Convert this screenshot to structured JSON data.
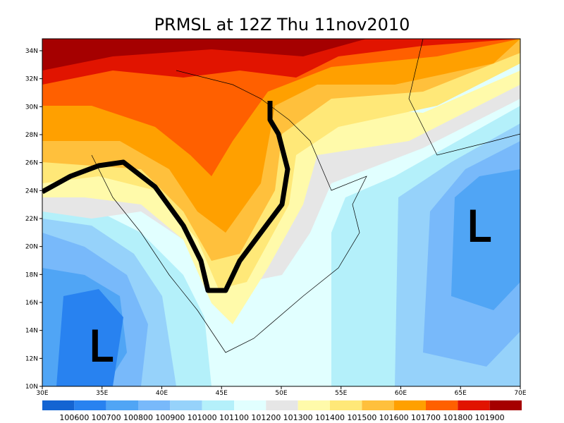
{
  "title": "PRMSL at 12Z Thu 11nov2010",
  "lat_labels": [
    "10N",
    "12N",
    "14N",
    "16N",
    "18N",
    "20N",
    "22N",
    "24N",
    "26N",
    "28N",
    "30N",
    "32N",
    "34N"
  ],
  "lon_labels": [
    "30E",
    "35E",
    "40E",
    "45E",
    "50E",
    "55E",
    "60E",
    "65E",
    "70E"
  ],
  "lows": [
    {
      "label": "L"
    },
    {
      "label": "L"
    }
  ],
  "colorbar": {
    "colors": [
      "#1464d2",
      "#2882f0",
      "#50a5f5",
      "#78b9fa",
      "#96d2fa",
      "#b4f0fa",
      "#e1ffff",
      "#e6e6e6",
      "#fffaaa",
      "#ffe878",
      "#ffc03c",
      "#ffa000",
      "#ff6000",
      "#e11400",
      "#a50000"
    ],
    "labels": [
      100600,
      100700,
      100800,
      100900,
      101000,
      101100,
      101200,
      101300,
      101400,
      101500,
      101600,
      101700,
      101800,
      101900
    ]
  }
}
